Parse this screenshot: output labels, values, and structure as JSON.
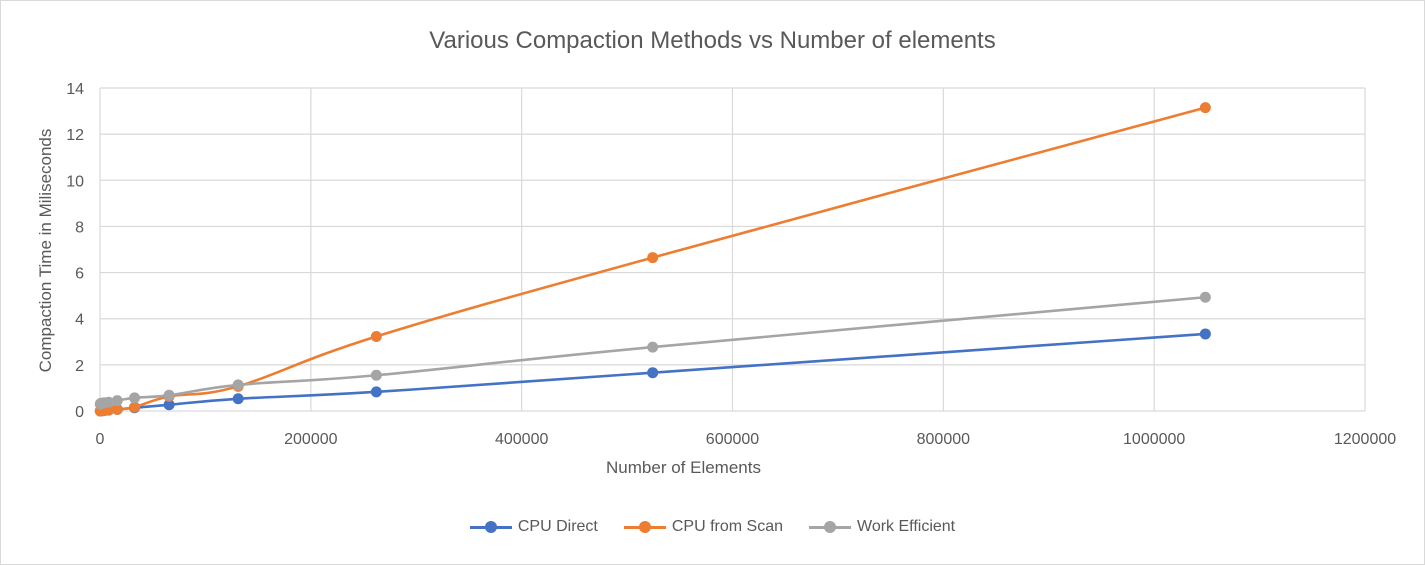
{
  "chart_data": {
    "type": "line",
    "title": "Various Compaction Methods vs Number of elements",
    "xlabel": "Number of Elements",
    "ylabel": "Compaction Time in Miliseconds",
    "xlim": [
      0,
      1200000
    ],
    "ylim": [
      0,
      14
    ],
    "xticks": [
      "0",
      "200000",
      "400000",
      "600000",
      "800000",
      "1000000",
      "1200000"
    ],
    "yticks": [
      "0",
      "2",
      "4",
      "6",
      "8",
      "10",
      "12",
      "14"
    ],
    "grid": true,
    "legend_position": "bottom",
    "x": [
      256,
      512,
      1024,
      2048,
      4096,
      8192,
      16384,
      32768,
      65536,
      131072,
      262144,
      524288,
      1048576
    ],
    "series": [
      {
        "name": "CPU Direct",
        "color": "#4472c4",
        "values": [
          0.0,
          0.0,
          0.01,
          0.01,
          0.02,
          0.04,
          0.07,
          0.14,
          0.27,
          0.53,
          0.83,
          1.66,
          3.34
        ]
      },
      {
        "name": "CPU from Scan",
        "color": "#ed7d31",
        "values": [
          0.0,
          0.0,
          0.01,
          0.01,
          0.02,
          0.04,
          0.07,
          0.17,
          0.63,
          1.07,
          3.23,
          6.65,
          13.15
        ]
      },
      {
        "name": "Work Efficient",
        "color": "#a5a5a5",
        "values": [
          0.3,
          0.32,
          0.33,
          0.34,
          0.36,
          0.38,
          0.45,
          0.57,
          0.68,
          1.13,
          1.55,
          2.77,
          4.93
        ]
      }
    ]
  }
}
